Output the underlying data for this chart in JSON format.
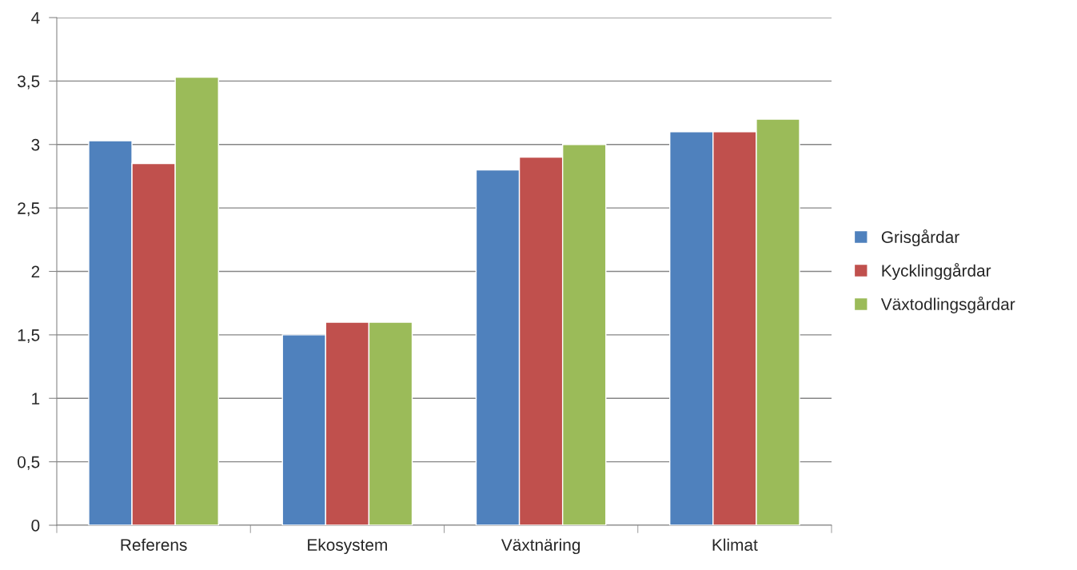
{
  "chart_data": {
    "type": "bar",
    "categories": [
      "Referens",
      "Ekosystem",
      "Växtnäring",
      "Klimat"
    ],
    "series": [
      {
        "name": "Grisgårdar",
        "color": "#4f81bd",
        "values": [
          3.03,
          1.5,
          2.8,
          3.1
        ]
      },
      {
        "name": "Kycklinggårdar",
        "color": "#c0504d",
        "values": [
          2.85,
          1.6,
          2.9,
          3.1
        ]
      },
      {
        "name": "Växtodlingsgårdar",
        "color": "#9bbb59",
        "values": [
          3.53,
          1.6,
          3.0,
          3.2
        ]
      }
    ],
    "ylim": [
      0,
      4
    ],
    "yticks": [
      0,
      {
        "value": 0.5,
        "label": "0,5"
      },
      1,
      {
        "value": 1.5,
        "label": "1,5"
      },
      2,
      {
        "value": 2.5,
        "label": "2,5"
      },
      3,
      {
        "value": 3.5,
        "label": "3,5"
      },
      4
    ],
    "grid": "y",
    "legend": "right"
  }
}
